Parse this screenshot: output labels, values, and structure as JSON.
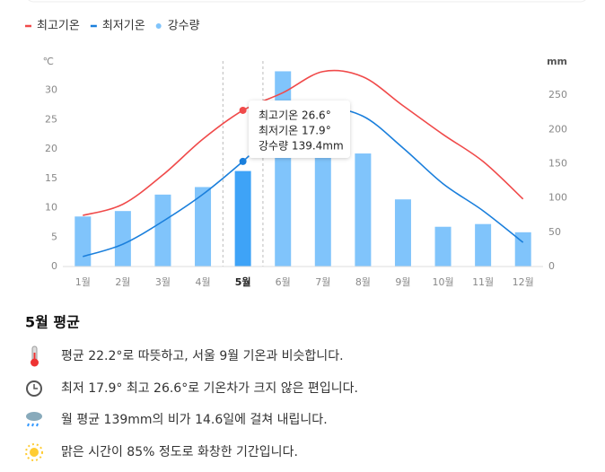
{
  "chart_data": {
    "type": "combo",
    "categories": [
      "1월",
      "2월",
      "3월",
      "4월",
      "5월",
      "6월",
      "7월",
      "8월",
      "9월",
      "10월",
      "11월",
      "12월"
    ],
    "series": [
      {
        "name": "최고기온",
        "type": "line",
        "color": "#f04a4a",
        "values": [
          8.7,
          10.6,
          15.6,
          21.7,
          26.6,
          29.6,
          33.2,
          32.3,
          27.4,
          22.5,
          17.9,
          11.5
        ]
      },
      {
        "name": "최저기온",
        "type": "line",
        "color": "#1a7fdc",
        "values": [
          1.7,
          3.8,
          7.7,
          12.3,
          17.9,
          24.0,
          26.8,
          25.6,
          20.2,
          14.1,
          9.5,
          4.1
        ]
      },
      {
        "name": "강수량",
        "type": "bar",
        "axis": "y2",
        "color": "#80c4fb",
        "highlight_color": "#3ea3f7",
        "values": [
          73,
          81,
          105,
          116,
          139.4,
          285,
          179,
          165,
          98,
          58,
          62,
          50
        ]
      }
    ],
    "ylabel": "℃",
    "y2label": "mm",
    "ylim": [
      0,
      35
    ],
    "yticks": [
      0,
      5,
      10,
      15,
      20,
      25,
      30
    ],
    "y2lim": [
      0,
      300
    ],
    "y2ticks": [
      0,
      50,
      100,
      150,
      200,
      250
    ],
    "highlight_index": 4,
    "tooltip": [
      "최고기온 26.6°",
      "최저기온 17.9°",
      "강수량 139.4mm"
    ]
  },
  "summary": {
    "title": "5월 평균",
    "items": [
      "평균 22.2°로 따뜻하고, 서울 9월 기온과 비슷합니다.",
      "최저 17.9° 최고 26.6°로 기온차가 크지 않은 편입니다.",
      "월 평균 139mm의 비가 14.6일에 걸쳐 내립니다.",
      "맑은 시간이 85% 정도로 화창한 기간입니다."
    ]
  }
}
